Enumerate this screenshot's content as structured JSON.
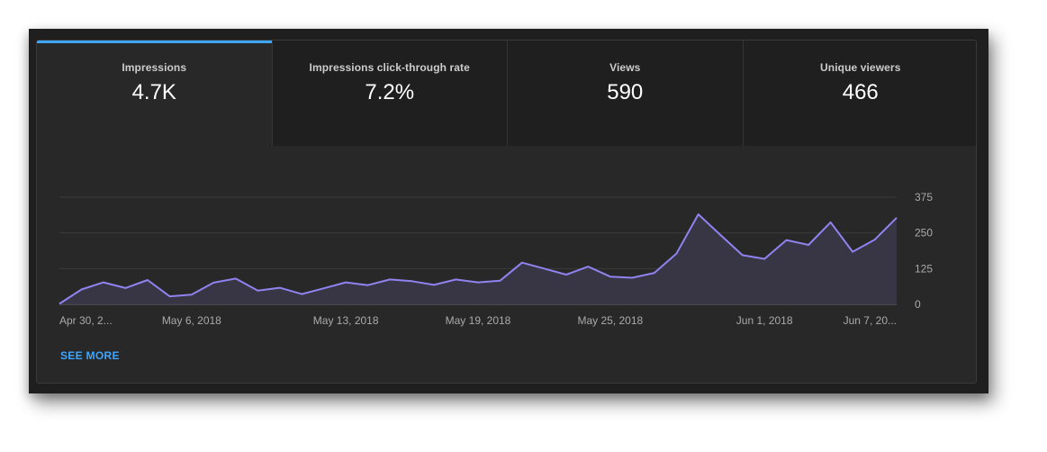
{
  "tabs": [
    {
      "label": "Impressions",
      "value": "4.7K",
      "active": true
    },
    {
      "label": "Impressions click-through rate",
      "value": "7.2%",
      "active": false
    },
    {
      "label": "Views",
      "value": "590",
      "active": false
    },
    {
      "label": "Unique viewers",
      "value": "466",
      "active": false
    }
  ],
  "see_more": "SEE MORE",
  "colors": {
    "line": "#8f83f0",
    "fill": "#3a3648",
    "accent": "#3ea6ff",
    "grid": "#3b3b3b"
  },
  "chart_data": {
    "type": "area",
    "series": [
      {
        "values": [
          2,
          52,
          77,
          57,
          85,
          28,
          34,
          76,
          90,
          48,
          58,
          36,
          56,
          77,
          67,
          87,
          81,
          68,
          87,
          77,
          83,
          146,
          125,
          104,
          132,
          97,
          93,
          110,
          177,
          315,
          243,
          172,
          159,
          225,
          208,
          287,
          184,
          226,
          303
        ]
      }
    ],
    "x_tick_labels": [
      "Apr 30, 2...",
      "May 6, 2018",
      "May 13, 2018",
      "May 19, 2018",
      "May 25, 2018",
      "Jun 1, 2018",
      "Jun 7, 20..."
    ],
    "y_tick_labels": [
      "0",
      "125",
      "250",
      "375"
    ],
    "ylim": [
      0,
      375
    ],
    "grid": true,
    "y_axis_position": "right"
  }
}
